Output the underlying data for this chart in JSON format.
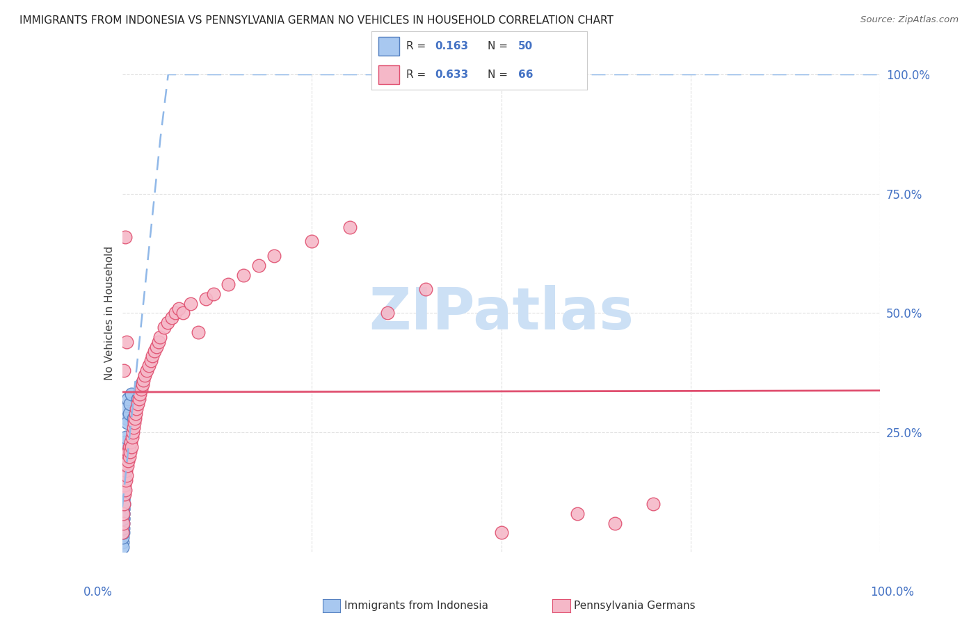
{
  "title": "IMMIGRANTS FROM INDONESIA VS PENNSYLVANIA GERMAN NO VEHICLES IN HOUSEHOLD CORRELATION CHART",
  "source": "Source: ZipAtlas.com",
  "ylabel": "No Vehicles in Household",
  "color_blue": "#a8c8f0",
  "color_pink": "#f5b8c8",
  "color_blue_line": "#5580c0",
  "color_pink_line": "#e05070",
  "color_blue_line_dashed": "#90b8e8",
  "background_color": "#ffffff",
  "grid_color": "#e0e0e0",
  "watermark_text": "ZIPatlas",
  "watermark_color": "#cce0f5",
  "blue_r": "0.163",
  "blue_n": "50",
  "pink_r": "0.633",
  "pink_n": "66",
  "blue_scatter_x": [
    0.0002,
    0.0003,
    0.0003,
    0.0004,
    0.0004,
    0.0005,
    0.0005,
    0.0006,
    0.0006,
    0.0007,
    0.0007,
    0.0008,
    0.0008,
    0.0009,
    0.0009,
    0.001,
    0.001,
    0.0011,
    0.0011,
    0.0012,
    0.0012,
    0.0013,
    0.0014,
    0.0015,
    0.0015,
    0.0016,
    0.0017,
    0.0018,
    0.0019,
    0.002,
    0.0021,
    0.0022,
    0.0023,
    0.0025,
    0.003,
    0.0032,
    0.0035,
    0.004,
    0.0042,
    0.0045,
    0.005,
    0.006,
    0.007,
    0.008,
    0.009,
    0.01,
    0.012,
    0.015,
    0.02,
    0.025
  ],
  "blue_scatter_y": [
    0.02,
    0.01,
    0.04,
    0.03,
    0.06,
    0.05,
    0.07,
    0.06,
    0.08,
    0.04,
    0.09,
    0.07,
    0.1,
    0.08,
    0.11,
    0.05,
    0.12,
    0.09,
    0.06,
    0.1,
    0.13,
    0.11,
    0.07,
    0.12,
    0.14,
    0.08,
    0.13,
    0.15,
    0.1,
    0.14,
    0.16,
    0.12,
    0.17,
    0.15,
    0.18,
    0.19,
    0.2,
    0.22,
    0.23,
    0.24,
    0.3,
    0.28,
    0.27,
    0.32,
    0.29,
    0.31,
    0.33,
    0.28,
    0.32,
    0.35
  ],
  "pink_scatter_x": [
    0.0005,
    0.001,
    0.0015,
    0.002,
    0.002,
    0.003,
    0.003,
    0.004,
    0.004,
    0.005,
    0.005,
    0.006,
    0.006,
    0.007,
    0.007,
    0.008,
    0.008,
    0.009,
    0.009,
    0.01,
    0.011,
    0.012,
    0.013,
    0.014,
    0.015,
    0.016,
    0.017,
    0.018,
    0.019,
    0.02,
    0.022,
    0.023,
    0.025,
    0.027,
    0.028,
    0.03,
    0.032,
    0.035,
    0.038,
    0.04,
    0.042,
    0.045,
    0.048,
    0.05,
    0.055,
    0.06,
    0.065,
    0.07,
    0.075,
    0.08,
    0.09,
    0.1,
    0.11,
    0.12,
    0.14,
    0.16,
    0.18,
    0.2,
    0.25,
    0.3,
    0.35,
    0.4,
    0.5,
    0.6,
    0.65,
    0.7
  ],
  "pink_scatter_y": [
    0.04,
    0.06,
    0.08,
    0.1,
    0.38,
    0.12,
    0.14,
    0.13,
    0.66,
    0.15,
    0.17,
    0.16,
    0.44,
    0.18,
    0.2,
    0.19,
    0.21,
    0.2,
    0.22,
    0.21,
    0.23,
    0.22,
    0.24,
    0.25,
    0.26,
    0.27,
    0.28,
    0.29,
    0.3,
    0.31,
    0.32,
    0.33,
    0.34,
    0.35,
    0.36,
    0.37,
    0.38,
    0.39,
    0.4,
    0.41,
    0.42,
    0.43,
    0.44,
    0.45,
    0.47,
    0.48,
    0.49,
    0.5,
    0.51,
    0.5,
    0.52,
    0.46,
    0.53,
    0.54,
    0.56,
    0.58,
    0.6,
    0.62,
    0.65,
    0.68,
    0.5,
    0.55,
    0.04,
    0.08,
    0.06,
    0.1
  ]
}
